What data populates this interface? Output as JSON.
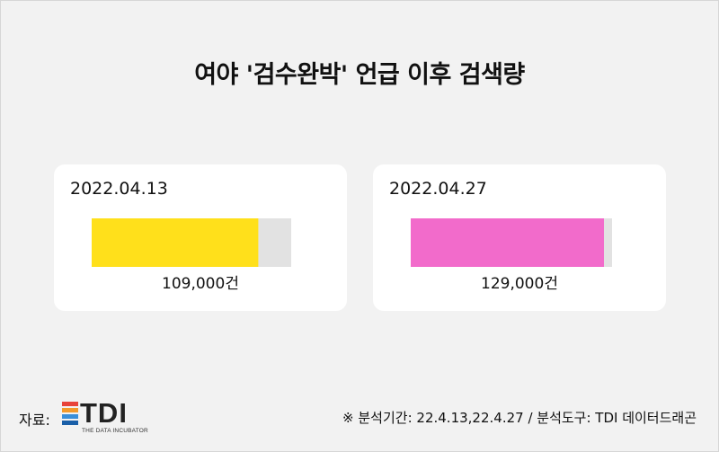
{
  "title": "여야 '검수완박' 언급 이후 검색량",
  "chart_data": {
    "type": "bar",
    "unit": "건",
    "max": 120000,
    "cards": [
      {
        "date": "2022.04.13",
        "value": 109000,
        "value_label": "109,000건",
        "color": "#ffe01b",
        "track": "#e2e2e2"
      },
      {
        "date": "2022.04.27",
        "value": 129000,
        "value_label": "129,000건",
        "color": "#f26bcb",
        "track": "#e2e2e2"
      }
    ]
  },
  "footer": {
    "source_label": "자료:",
    "logo_text": "TDI",
    "logo_subtext": "THE DATA INCUBATOR",
    "note": "※ 분석기간: 22.4.13,22.4.27 / 분석도구: TDI 데이터드래곤"
  },
  "logo_colors": [
    "#e8433a",
    "#f39a2b",
    "#3a8fd8",
    "#1a5fa8"
  ]
}
